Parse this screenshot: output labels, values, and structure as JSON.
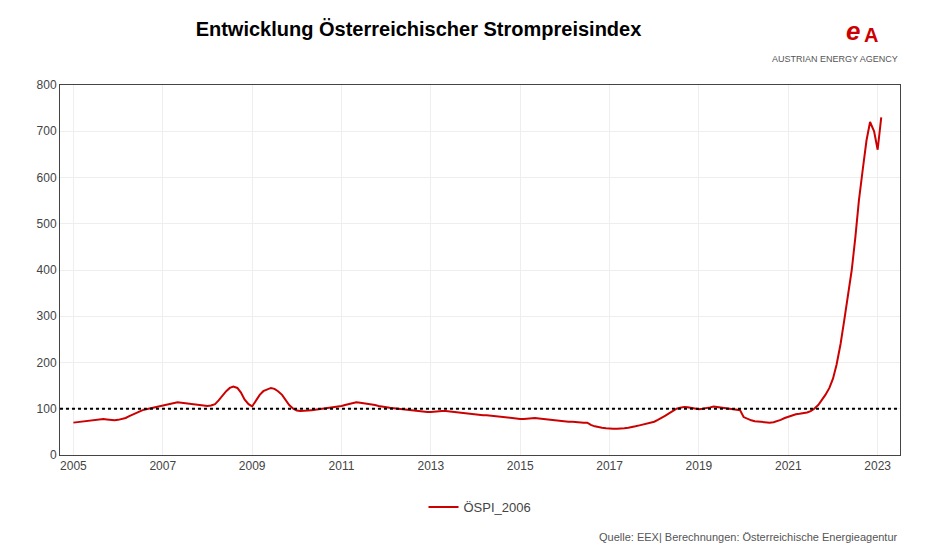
{
  "chart_data": {
    "type": "line",
    "title": "Entwicklung Österreichischer Strompreisindex",
    "subtitle": "Quelle: EEX| Berechnungen: Österreichische Energieagentur",
    "annotations": [
      "AUSTRIAN ENERGY AGENCY",
      "e",
      "A"
    ],
    "x": [
      2005.0,
      2005.08,
      2005.17,
      2005.25,
      2005.33,
      2005.42,
      2005.5,
      2005.58,
      2005.67,
      2005.75,
      2005.83,
      2005.92,
      2006.0,
      2006.08,
      2006.17,
      2006.25,
      2006.33,
      2006.42,
      2006.5,
      2006.58,
      2006.67,
      2006.75,
      2006.83,
      2006.92,
      2007.0,
      2007.08,
      2007.17,
      2007.25,
      2007.33,
      2007.42,
      2007.5,
      2007.58,
      2007.67,
      2007.75,
      2007.83,
      2007.92,
      2008.0,
      2008.08,
      2008.17,
      2008.25,
      2008.33,
      2008.42,
      2008.5,
      2008.58,
      2008.67,
      2008.75,
      2008.83,
      2008.92,
      2009.0,
      2009.08,
      2009.17,
      2009.25,
      2009.33,
      2009.42,
      2009.5,
      2009.58,
      2009.67,
      2009.75,
      2009.83,
      2009.92,
      2010.0,
      2010.08,
      2010.17,
      2010.25,
      2010.33,
      2010.42,
      2010.5,
      2010.58,
      2010.67,
      2010.75,
      2010.83,
      2010.92,
      2011.0,
      2011.08,
      2011.17,
      2011.25,
      2011.33,
      2011.42,
      2011.5,
      2011.58,
      2011.67,
      2011.75,
      2011.83,
      2011.92,
      2012.0,
      2012.08,
      2012.17,
      2012.25,
      2012.33,
      2012.42,
      2012.5,
      2012.58,
      2012.67,
      2012.75,
      2012.83,
      2012.92,
      2013.0,
      2013.08,
      2013.17,
      2013.25,
      2013.33,
      2013.42,
      2013.5,
      2013.58,
      2013.67,
      2013.75,
      2013.83,
      2013.92,
      2014.0,
      2014.08,
      2014.17,
      2014.25,
      2014.33,
      2014.42,
      2014.5,
      2014.58,
      2014.67,
      2014.75,
      2014.83,
      2014.92,
      2015.0,
      2015.08,
      2015.17,
      2015.25,
      2015.33,
      2015.42,
      2015.5,
      2015.58,
      2015.67,
      2015.75,
      2015.83,
      2015.92,
      2016.0,
      2016.08,
      2016.17,
      2016.25,
      2016.33,
      2016.42,
      2016.5,
      2016.58,
      2016.67,
      2016.75,
      2016.83,
      2016.92,
      2017.0,
      2017.08,
      2017.17,
      2017.25,
      2017.33,
      2017.42,
      2017.5,
      2017.58,
      2017.67,
      2017.75,
      2017.83,
      2017.92,
      2018.0,
      2018.08,
      2018.17,
      2018.25,
      2018.33,
      2018.42,
      2018.5,
      2018.58,
      2018.67,
      2018.75,
      2018.83,
      2018.92,
      2019.0,
      2019.08,
      2019.17,
      2019.25,
      2019.33,
      2019.42,
      2019.5,
      2019.58,
      2019.67,
      2019.75,
      2019.83,
      2019.92,
      2020.0,
      2020.08,
      2020.17,
      2020.25,
      2020.33,
      2020.42,
      2020.5,
      2020.58,
      2020.67,
      2020.75,
      2020.83,
      2020.92,
      2021.0,
      2021.08,
      2021.17,
      2021.25,
      2021.33,
      2021.42,
      2021.5,
      2021.58,
      2021.67,
      2021.75,
      2021.83,
      2021.92,
      2022.0,
      2022.08,
      2022.17,
      2022.25,
      2022.33,
      2022.42,
      2022.5,
      2022.58,
      2022.67,
      2022.75,
      2022.83,
      2022.92,
      2023.0,
      2023.08
    ],
    "series": [
      {
        "name": "ÖSPI_2006",
        "color": "#CC0000",
        "line_style": "solid",
        "values": [
          70,
          71,
          72,
          73,
          74,
          75,
          77,
          78,
          78,
          77,
          76,
          75,
          76,
          78,
          80,
          84,
          88,
          92,
          95,
          98,
          100,
          102,
          104,
          106,
          108,
          110,
          112,
          113,
          114,
          113,
          112,
          111,
          110,
          109,
          108,
          107,
          106,
          107,
          110,
          118,
          128,
          138,
          145,
          148,
          145,
          135,
          120,
          110,
          105,
          118,
          130,
          138,
          142,
          145,
          143,
          138,
          130,
          118,
          108,
          100,
          96,
          95,
          95,
          96,
          97,
          98,
          100,
          101,
          102,
          103,
          104,
          105,
          106,
          108,
          110,
          112,
          114,
          113,
          112,
          111,
          110,
          108,
          106,
          104,
          103,
          102,
          101,
          100,
          99,
          98,
          97,
          96,
          95,
          94,
          93,
          93,
          93,
          94,
          95,
          95,
          95,
          94,
          93,
          92,
          91,
          90,
          89,
          88,
          88,
          87,
          86,
          86,
          85,
          84,
          83,
          82,
          81,
          80,
          79,
          78,
          78,
          78,
          79,
          80,
          80,
          79,
          78,
          77,
          76,
          75,
          74,
          73,
          73,
          72,
          72,
          71,
          71,
          70,
          70,
          65,
          62,
          60,
          59,
          58,
          57,
          57,
          57,
          57,
          58,
          59,
          60,
          62,
          64,
          66,
          68,
          70,
          72,
          76,
          80,
          85,
          90,
          95,
          100,
          102,
          104,
          103,
          102,
          100,
          99,
          100,
          101,
          103,
          105,
          104,
          103,
          101,
          100,
          99,
          98,
          97,
          82,
          78,
          75,
          73,
          72,
          71,
          70,
          70,
          71,
          73,
          76,
          80,
          83,
          86,
          88,
          89,
          90,
          92,
          95,
          100,
          108,
          118,
          130,
          145,
          165,
          195,
          240,
          290,
          340,
          400,
          470,
          550,
          620,
          680,
          720,
          700,
          660,
          730
        ]
      }
    ],
    "reference_line": {
      "y": 100,
      "color": "#000000",
      "line_style": "dotted"
    },
    "xlim": [
      2004.7,
      2023.5
    ],
    "xticks": [
      2005,
      2007,
      2009,
      2011,
      2013,
      2015,
      2017,
      2019,
      2021,
      2023
    ],
    "ylim": [
      0,
      800
    ],
    "yticks": [
      0,
      100,
      200,
      300,
      400,
      500,
      600,
      700,
      800
    ],
    "grid": true,
    "legend": "bottom"
  }
}
